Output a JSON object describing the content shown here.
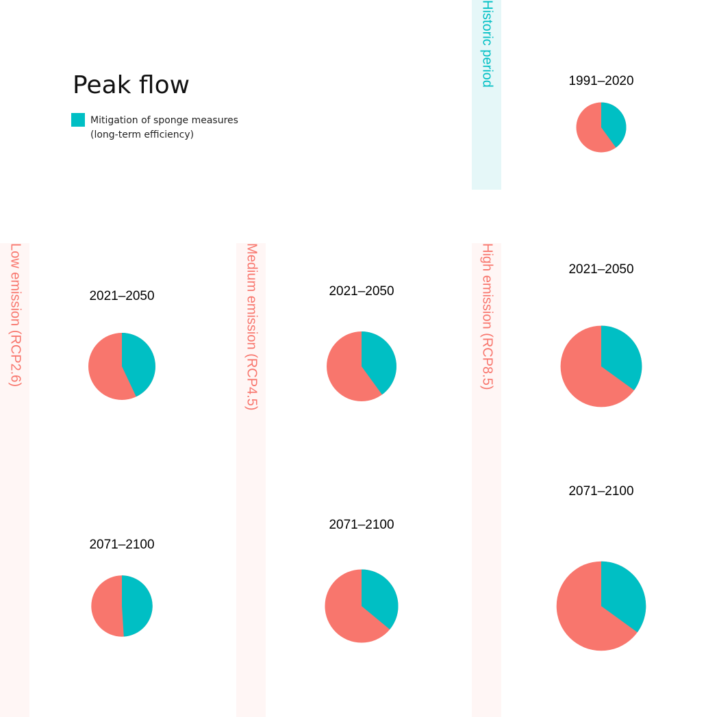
{
  "chart_data": {
    "type": "pie",
    "title": "Peak flow",
    "legend": [
      {
        "label": "Mitigation of sponge measures\n(long-term efficiency)",
        "color": "#00bfc4"
      }
    ],
    "colors": {
      "mitigated": "#00bfc4",
      "remainder": "#f8766d",
      "historic_band": "#e5f7f8",
      "scenario_band": "#fff6f5"
    },
    "panels": [
      {
        "scenario": "Historic period",
        "period": "1991–2020",
        "mitigation_share": 0.4,
        "relative_peak_flow": 1.0
      },
      {
        "scenario": "Low emission (RCP2.6)",
        "period": "2021–2050",
        "mitigation_share": 0.43,
        "relative_peak_flow": 1.8
      },
      {
        "scenario": "Low emission (RCP2.6)",
        "period": "2071–2100",
        "mitigation_share": 0.49,
        "relative_peak_flow": 1.5
      },
      {
        "scenario": "Medium emission (RCP4.5)",
        "period": "2021–2050",
        "mitigation_share": 0.4,
        "relative_peak_flow": 1.95
      },
      {
        "scenario": "Medium emission (RCP4.5)",
        "period": "2071–2100",
        "mitigation_share": 0.36,
        "relative_peak_flow": 2.15
      },
      {
        "scenario": "High emission (RCP8.5)",
        "period": "2021–2050",
        "mitigation_share": 0.35,
        "relative_peak_flow": 2.65
      },
      {
        "scenario": "High emission (RCP8.5)",
        "period": "2071–2100",
        "mitigation_share": 0.35,
        "relative_peak_flow": 3.2
      }
    ]
  },
  "bands": {
    "historic": "Historic period",
    "low": "Low emission (RCP2.6)",
    "medium": "Medium emission (RCP4.5)",
    "high": "High emission (RCP8.5)"
  }
}
